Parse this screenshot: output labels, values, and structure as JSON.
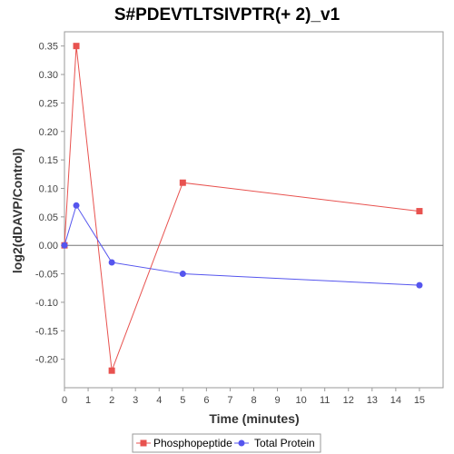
{
  "chart_data": {
    "type": "line",
    "title": "S#PDEVTLTSIVPTR(+ 2)_v1",
    "xlabel": "Time (minutes)",
    "ylabel": "log2(dDAVP/Control)",
    "xlim": [
      0,
      16
    ],
    "ylim": [
      -0.25,
      0.375
    ],
    "x_ticks": [
      0,
      1,
      2,
      3,
      4,
      5,
      6,
      7,
      8,
      9,
      10,
      11,
      12,
      13,
      14,
      15
    ],
    "y_ticks": [
      -0.2,
      -0.15,
      -0.1,
      -0.05,
      0.0,
      0.05,
      0.1,
      0.15,
      0.2,
      0.25,
      0.3,
      0.35
    ],
    "y_tick_labels": [
      "-0.20",
      "-0.15",
      "-0.10",
      "-0.05",
      "0.00",
      "0.05",
      "0.10",
      "0.15",
      "0.20",
      "0.25",
      "0.30",
      "0.35"
    ],
    "zero_line": true,
    "grid": false,
    "legend_position": "bottom-center",
    "series": [
      {
        "name": "Phosphopeptide",
        "color": "#e8524f",
        "marker": "square",
        "x": [
          0,
          0.5,
          2,
          5,
          15
        ],
        "y": [
          0.0,
          0.35,
          -0.22,
          0.11,
          0.06
        ]
      },
      {
        "name": "Total Protein",
        "color": "#5555ee",
        "marker": "circle",
        "x": [
          0,
          0.5,
          2,
          5,
          15
        ],
        "y": [
          0.0,
          0.07,
          -0.03,
          -0.05,
          -0.07
        ]
      }
    ]
  }
}
